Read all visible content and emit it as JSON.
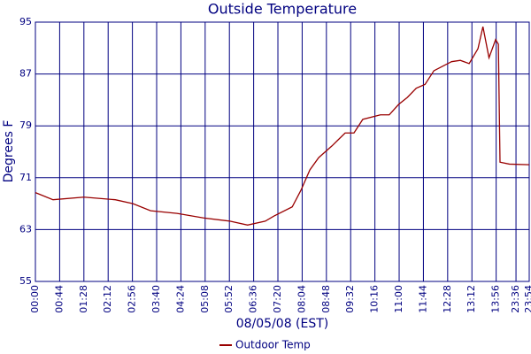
{
  "chart_data": {
    "type": "line",
    "title": "Outside Temperature",
    "x_label": "08/05/08 (EST)",
    "y_label": "Degrees F",
    "x": [
      0,
      32,
      88,
      145,
      177,
      209,
      257,
      305,
      353,
      385,
      417,
      433,
      466,
      482,
      498,
      514,
      538,
      562,
      578,
      594,
      626,
      642,
      659,
      675,
      691,
      707,
      723,
      739,
      755,
      771,
      787,
      803,
      812,
      823,
      835,
      840,
      843,
      860,
      896
    ],
    "series": [
      {
        "name": "Outdoor Temp",
        "color": "#990000",
        "values": [
          68.7,
          67.6,
          68.0,
          67.6,
          67.0,
          65.9,
          65.5,
          64.8,
          64.3,
          63.7,
          64.3,
          65.1,
          66.5,
          69.1,
          72.2,
          74.1,
          75.9,
          77.9,
          77.9,
          80.0,
          80.7,
          80.7,
          82.3,
          83.4,
          84.8,
          85.4,
          87.5,
          88.2,
          88.9,
          89.1,
          88.6,
          90.9,
          94.3,
          89.5,
          92.3,
          91.6,
          73.4,
          73.1,
          73.0
        ]
      }
    ],
    "xlim": [
      0,
      896
    ],
    "xticks": [
      {
        "value": 0,
        "label": "00:00"
      },
      {
        "value": 44,
        "label": "00:44"
      },
      {
        "value": 88,
        "label": "01:28"
      },
      {
        "value": 132,
        "label": "02:12"
      },
      {
        "value": 176,
        "label": "02:56"
      },
      {
        "value": 220,
        "label": "03:40"
      },
      {
        "value": 264,
        "label": "04:24"
      },
      {
        "value": 308,
        "label": "05:08"
      },
      {
        "value": 352,
        "label": "05:52"
      },
      {
        "value": 396,
        "label": "06:36"
      },
      {
        "value": 440,
        "label": "07:20"
      },
      {
        "value": 484,
        "label": "08:04"
      },
      {
        "value": 528,
        "label": "08:48"
      },
      {
        "value": 572,
        "label": "09:32"
      },
      {
        "value": 616,
        "label": "10:16"
      },
      {
        "value": 660,
        "label": "11:00"
      },
      {
        "value": 704,
        "label": "11:44"
      },
      {
        "value": 748,
        "label": "12:28"
      },
      {
        "value": 792,
        "label": "13:12"
      },
      {
        "value": 836,
        "label": "13:56"
      },
      {
        "value": 872,
        "label": "23:36"
      },
      {
        "value": 896,
        "label": "23:54"
      }
    ],
    "ylim": [
      55,
      95
    ],
    "yticks": [
      55,
      63,
      71,
      79,
      87,
      95
    ],
    "grid": true,
    "grid_color": "#000080",
    "legend": "bottom"
  }
}
